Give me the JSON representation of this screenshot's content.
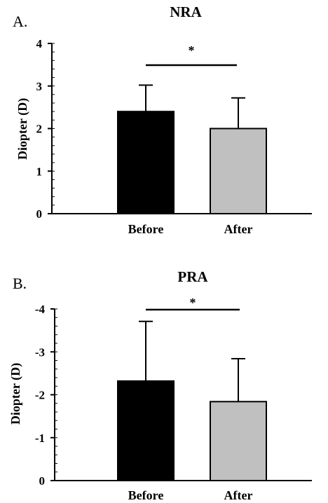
{
  "chart_data": [
    {
      "type": "bar",
      "panel_label": "A.",
      "title": "NRA",
      "ylabel": "Diopter (D)",
      "xlabel": "",
      "categories": [
        "Before",
        "After"
      ],
      "values": [
        2.4,
        2.0
      ],
      "error": [
        0.62,
        0.72
      ],
      "colors": [
        "#000000",
        "#c0c0c0"
      ],
      "ylim": [
        0,
        4
      ],
      "yticks": [
        0,
        1,
        2,
        3,
        4
      ],
      "ytick_labels": [
        "0",
        "1",
        "2",
        "3",
        "4"
      ],
      "minor_tick_step": 0.2,
      "significance": {
        "label": "*",
        "pair": [
          "Before",
          "After"
        ]
      },
      "grid": false,
      "legend": "none"
    },
    {
      "type": "bar",
      "panel_label": "B.",
      "title": "PRA",
      "ylabel": "Diopter (D)",
      "xlabel": "",
      "categories": [
        "Before",
        "After"
      ],
      "values": [
        -2.32,
        -1.84
      ],
      "error": [
        1.39,
        1.0
      ],
      "colors": [
        "#000000",
        "#c0c0c0"
      ],
      "ylim": [
        0,
        -4
      ],
      "yticks": [
        0,
        -1,
        -2,
        -3,
        -4
      ],
      "ytick_labels": [
        "0",
        "-1",
        "-2",
        "-3",
        "-4"
      ],
      "minor_tick_step": 0.2,
      "significance": {
        "label": "*",
        "pair": [
          "Before",
          "After"
        ]
      },
      "grid": false,
      "legend": "none"
    }
  ]
}
